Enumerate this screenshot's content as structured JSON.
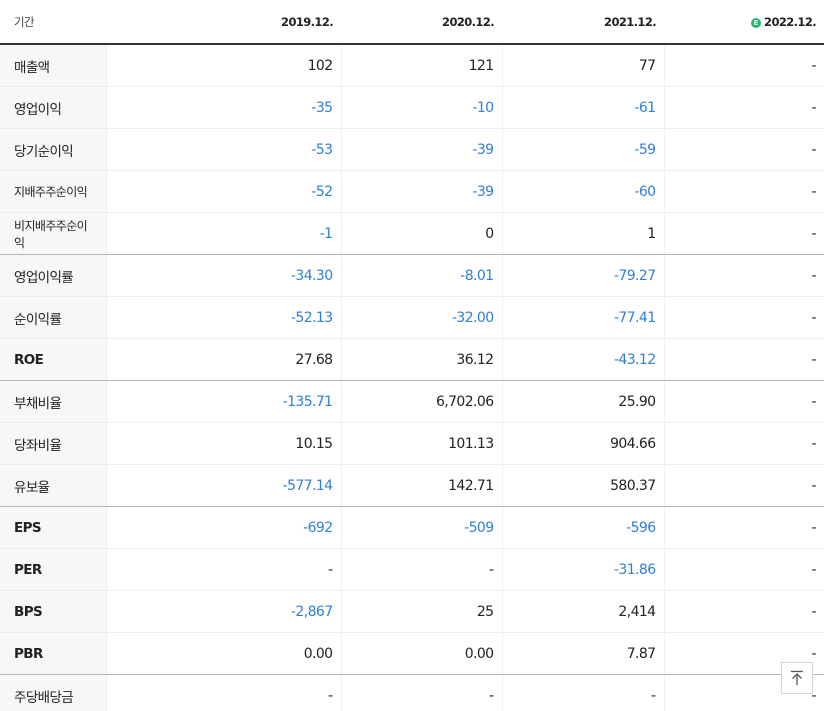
{
  "table": {
    "header": {
      "period_label": "기간",
      "columns": [
        "2019.12.",
        "2020.12.",
        "2021.12.",
        "2022.12."
      ],
      "estimate_badge": "E"
    },
    "rows": [
      {
        "label": "매출액",
        "values": [
          "102",
          "121",
          "77",
          "-"
        ]
      },
      {
        "label": "영업이익",
        "values": [
          "-35",
          "-10",
          "-61",
          "-"
        ]
      },
      {
        "label": "당기순이익",
        "values": [
          "-53",
          "-39",
          "-59",
          "-"
        ]
      },
      {
        "label": "지배주주순이익",
        "values": [
          "-52",
          "-39",
          "-60",
          "-"
        ]
      },
      {
        "label": "비지배주주순이익",
        "values": [
          "-1",
          "0",
          "1",
          "-"
        ]
      },
      {
        "label": "영업이익률",
        "values": [
          "-34.30",
          "-8.01",
          "-79.27",
          "-"
        ]
      },
      {
        "label": "순이익률",
        "values": [
          "-52.13",
          "-32.00",
          "-77.41",
          "-"
        ]
      },
      {
        "label": "ROE",
        "values": [
          "27.68",
          "36.12",
          "-43.12",
          "-"
        ]
      },
      {
        "label": "부채비율",
        "values": [
          "-135.71",
          "6,702.06",
          "25.90",
          "-"
        ]
      },
      {
        "label": "당좌비율",
        "values": [
          "10.15",
          "101.13",
          "904.66",
          "-"
        ]
      },
      {
        "label": "유보율",
        "values": [
          "-577.14",
          "142.71",
          "580.37",
          "-"
        ]
      },
      {
        "label": "EPS",
        "values": [
          "-692",
          "-509",
          "-596",
          "-"
        ]
      },
      {
        "label": "PER",
        "values": [
          "-",
          "-",
          "-31.86",
          "-"
        ]
      },
      {
        "label": "BPS",
        "values": [
          "-2,867",
          "25",
          "2,414",
          "-"
        ]
      },
      {
        "label": "PBR",
        "values": [
          "0.00",
          "0.00",
          "7.87",
          "-"
        ]
      },
      {
        "label": "주당배당금",
        "values": [
          "-",
          "-",
          "-",
          "-"
        ]
      }
    ]
  },
  "colors": {
    "negative": "#2f7ed8",
    "estimate_badge": "#1fb96e",
    "label_bg": "#f7f7f7"
  },
  "icons": {
    "scroll_top": "arrow-up-to-line-icon"
  }
}
